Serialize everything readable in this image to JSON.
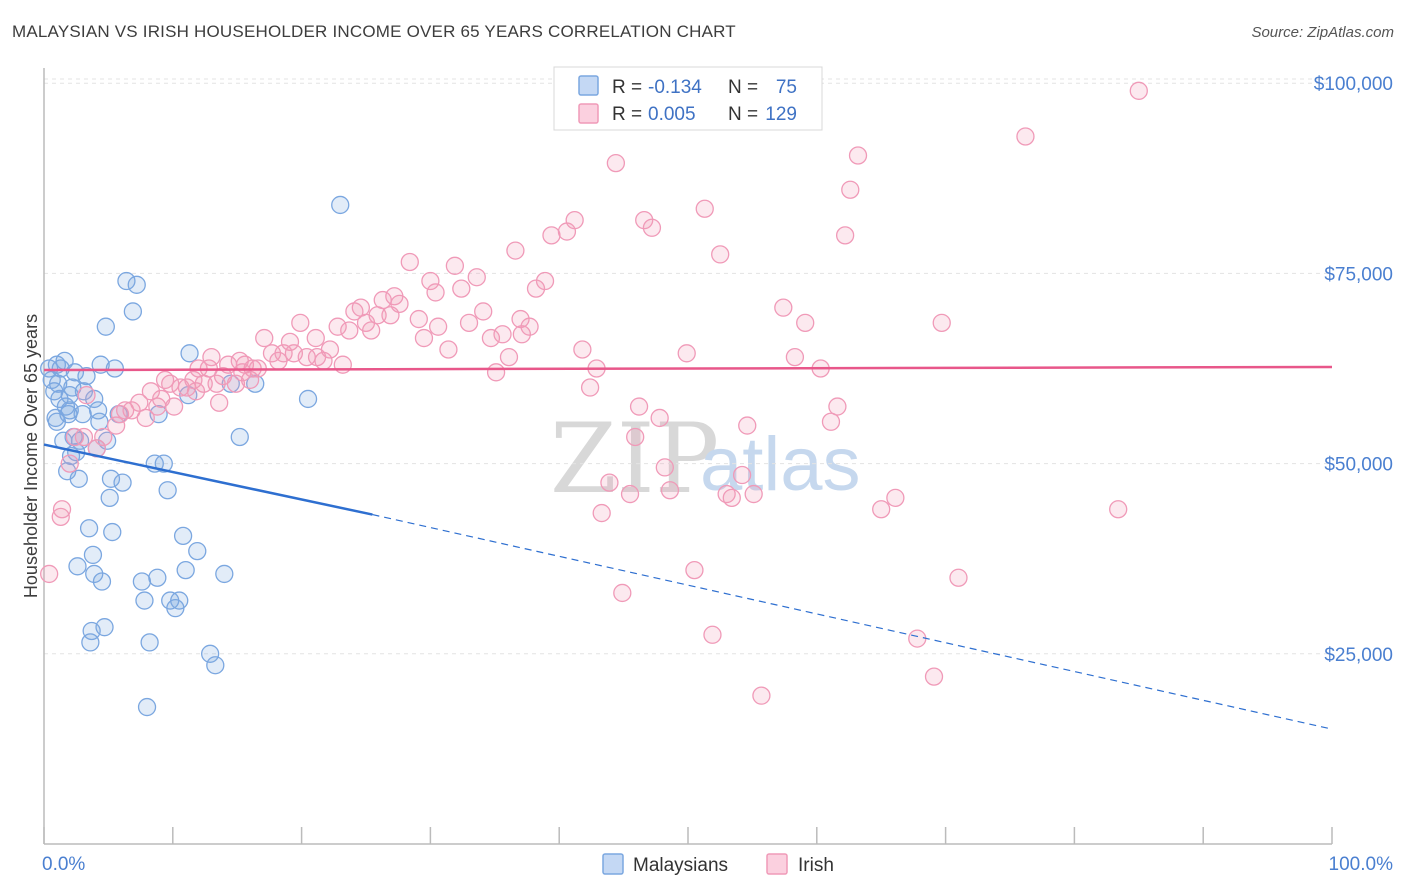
{
  "title": "MALAYSIAN VS IRISH HOUSEHOLDER INCOME OVER 65 YEARS CORRELATION CHART",
  "source": "Source: ZipAtlas.com",
  "watermark": {
    "part1": "ZIP",
    "part2": "atlas"
  },
  "legend": {
    "rows": [
      {
        "r_label": "R =",
        "r_value": "-0.134",
        "n_label": "N =",
        "n_value": "75",
        "color": "#7ba7e0"
      },
      {
        "r_label": "R =",
        "r_value": "0.005",
        "n_label": "N =",
        "n_value": "129",
        "color": "#f09ab8"
      }
    ]
  },
  "bottom_legend": [
    {
      "label": "Malaysians",
      "color": "#7ba7e0"
    },
    {
      "label": "Irish",
      "color": "#f09ab8"
    }
  ],
  "chart_data": {
    "type": "scatter",
    "xlabel": "",
    "ylabel": "Householder Income Over 65 years",
    "xlim": [
      0,
      100
    ],
    "ylim": [
      0,
      102000
    ],
    "x_tick_labels": [
      "0.0%",
      "100.0%"
    ],
    "y_ticks": [
      25000,
      50000,
      75000,
      100000
    ],
    "y_tick_labels": [
      "$25,000",
      "$50,000",
      "$75,000",
      "$100,000"
    ],
    "grid": true,
    "series": [
      {
        "name": "Malaysians",
        "color": "#7ba7e0",
        "trend": {
          "x0": 0,
          "y0": 52500,
          "x1": 25.5,
          "y1": 43300,
          "x_end": 100,
          "y_end": 15100
        },
        "points": [
          [
            0.4,
            62500
          ],
          [
            0.6,
            61000
          ],
          [
            0.8,
            59500
          ],
          [
            0.9,
            56000
          ],
          [
            1.0,
            63000
          ],
          [
            1.1,
            60500
          ],
          [
            1.2,
            58500
          ],
          [
            1.3,
            62500
          ],
          [
            1.5,
            53000
          ],
          [
            1.6,
            63500
          ],
          [
            1.7,
            57500
          ],
          [
            1.8,
            49000
          ],
          [
            1.9,
            56500
          ],
          [
            2.0,
            59000
          ],
          [
            2.1,
            51000
          ],
          [
            2.2,
            60000
          ],
          [
            2.3,
            53500
          ],
          [
            2.4,
            62000
          ],
          [
            2.5,
            51500
          ],
          [
            2.6,
            36500
          ],
          [
            2.7,
            48000
          ],
          [
            2.8,
            53000
          ],
          [
            3.0,
            56500
          ],
          [
            3.1,
            59500
          ],
          [
            3.3,
            61500
          ],
          [
            3.5,
            41500
          ],
          [
            3.6,
            26500
          ],
          [
            3.7,
            28000
          ],
          [
            3.8,
            38000
          ],
          [
            3.9,
            35500
          ],
          [
            4.1,
            52000
          ],
          [
            4.2,
            57000
          ],
          [
            4.3,
            55500
          ],
          [
            4.4,
            63000
          ],
          [
            4.5,
            34500
          ],
          [
            4.7,
            28500
          ],
          [
            4.8,
            68000
          ],
          [
            4.9,
            53000
          ],
          [
            5.1,
            45500
          ],
          [
            5.2,
            48000
          ],
          [
            5.3,
            41000
          ],
          [
            5.5,
            62500
          ],
          [
            5.8,
            56500
          ],
          [
            6.1,
            47500
          ],
          [
            6.4,
            74000
          ],
          [
            6.9,
            70000
          ],
          [
            7.2,
            73500
          ],
          [
            7.6,
            34500
          ],
          [
            7.8,
            32000
          ],
          [
            8.0,
            18000
          ],
          [
            8.2,
            26500
          ],
          [
            8.6,
            50000
          ],
          [
            8.8,
            35000
          ],
          [
            8.9,
            56500
          ],
          [
            9.3,
            50000
          ],
          [
            9.6,
            46500
          ],
          [
            9.8,
            32000
          ],
          [
            10.2,
            31000
          ],
          [
            10.5,
            32000
          ],
          [
            10.8,
            40500
          ],
          [
            11.0,
            36000
          ],
          [
            11.2,
            59000
          ],
          [
            11.3,
            64500
          ],
          [
            11.9,
            38500
          ],
          [
            12.9,
            25000
          ],
          [
            13.3,
            23500
          ],
          [
            14.0,
            35500
          ],
          [
            14.5,
            60500
          ],
          [
            15.2,
            53500
          ],
          [
            16.4,
            60500
          ],
          [
            20.5,
            58500
          ],
          [
            23.0,
            84000
          ],
          [
            1.0,
            55500
          ],
          [
            2.0,
            57000
          ],
          [
            3.9,
            58500
          ]
        ]
      },
      {
        "name": "Irish",
        "color": "#f09ab8",
        "trend": {
          "x0": 0,
          "y0": 62300,
          "x1": 100,
          "y1": 62700
        },
        "points": [
          [
            0.4,
            35500
          ],
          [
            1.3,
            43000
          ],
          [
            1.4,
            44000
          ],
          [
            2.0,
            50000
          ],
          [
            2.4,
            53500
          ],
          [
            3.1,
            53500
          ],
          [
            3.3,
            59000
          ],
          [
            4.1,
            52000
          ],
          [
            4.6,
            53500
          ],
          [
            5.6,
            55000
          ],
          [
            5.9,
            56500
          ],
          [
            6.3,
            57000
          ],
          [
            6.8,
            57000
          ],
          [
            7.4,
            58000
          ],
          [
            7.9,
            56000
          ],
          [
            8.3,
            59500
          ],
          [
            8.8,
            57500
          ],
          [
            9.1,
            58500
          ],
          [
            9.4,
            61000
          ],
          [
            9.8,
            60500
          ],
          [
            10.1,
            57500
          ],
          [
            10.6,
            60000
          ],
          [
            11.1,
            60000
          ],
          [
            11.6,
            61000
          ],
          [
            12.0,
            62500
          ],
          [
            12.4,
            60500
          ],
          [
            12.8,
            62500
          ],
          [
            13.0,
            64000
          ],
          [
            13.4,
            60500
          ],
          [
            13.9,
            61500
          ],
          [
            14.3,
            63000
          ],
          [
            14.9,
            60500
          ],
          [
            15.2,
            63500
          ],
          [
            15.6,
            63000
          ],
          [
            16.0,
            61000
          ],
          [
            16.2,
            62500
          ],
          [
            16.6,
            62500
          ],
          [
            17.1,
            66500
          ],
          [
            17.7,
            64500
          ],
          [
            18.2,
            63500
          ],
          [
            18.6,
            64500
          ],
          [
            19.1,
            66000
          ],
          [
            19.4,
            64500
          ],
          [
            19.9,
            68500
          ],
          [
            20.4,
            64000
          ],
          [
            21.1,
            66500
          ],
          [
            21.7,
            63500
          ],
          [
            22.2,
            65000
          ],
          [
            22.8,
            68000
          ],
          [
            23.2,
            63000
          ],
          [
            23.7,
            67500
          ],
          [
            24.1,
            70000
          ],
          [
            24.6,
            70500
          ],
          [
            25.0,
            68500
          ],
          [
            25.4,
            67500
          ],
          [
            25.9,
            69500
          ],
          [
            26.3,
            71500
          ],
          [
            27.2,
            72000
          ],
          [
            27.6,
            71000
          ],
          [
            28.4,
            76500
          ],
          [
            29.1,
            69000
          ],
          [
            29.5,
            66500
          ],
          [
            30.0,
            74000
          ],
          [
            30.6,
            68000
          ],
          [
            31.4,
            65000
          ],
          [
            31.9,
            76000
          ],
          [
            32.4,
            73000
          ],
          [
            33.0,
            68500
          ],
          [
            33.6,
            74500
          ],
          [
            34.1,
            70000
          ],
          [
            34.7,
            66500
          ],
          [
            35.1,
            62000
          ],
          [
            35.6,
            67000
          ],
          [
            36.1,
            64000
          ],
          [
            36.6,
            78000
          ],
          [
            37.1,
            67000
          ],
          [
            37.7,
            68000
          ],
          [
            38.2,
            73000
          ],
          [
            38.9,
            74000
          ],
          [
            39.4,
            80000
          ],
          [
            40.6,
            80500
          ],
          [
            41.2,
            82000
          ],
          [
            41.8,
            65000
          ],
          [
            42.4,
            60000
          ],
          [
            42.9,
            62500
          ],
          [
            43.3,
            43500
          ],
          [
            43.9,
            47500
          ],
          [
            44.4,
            89500
          ],
          [
            44.9,
            33000
          ],
          [
            45.5,
            46000
          ],
          [
            45.9,
            53500
          ],
          [
            46.6,
            82000
          ],
          [
            47.2,
            81000
          ],
          [
            47.8,
            56000
          ],
          [
            48.2,
            49500
          ],
          [
            48.6,
            46500
          ],
          [
            49.9,
            64500
          ],
          [
            50.5,
            36000
          ],
          [
            51.3,
            83500
          ],
          [
            51.9,
            27500
          ],
          [
            52.5,
            77500
          ],
          [
            53.0,
            46000
          ],
          [
            53.4,
            45500
          ],
          [
            54.2,
            48500
          ],
          [
            54.6,
            55000
          ],
          [
            55.1,
            46000
          ],
          [
            55.7,
            19500
          ],
          [
            57.4,
            70500
          ],
          [
            58.3,
            64000
          ],
          [
            59.1,
            68500
          ],
          [
            60.3,
            62500
          ],
          [
            61.1,
            55500
          ],
          [
            61.6,
            57500
          ],
          [
            62.2,
            80000
          ],
          [
            62.6,
            86000
          ],
          [
            63.2,
            90500
          ],
          [
            65.0,
            44000
          ],
          [
            66.1,
            45500
          ],
          [
            67.8,
            27000
          ],
          [
            69.1,
            22000
          ],
          [
            69.7,
            68500
          ],
          [
            71.0,
            35000
          ],
          [
            76.2,
            93000
          ],
          [
            83.4,
            44000
          ],
          [
            85.0,
            99000
          ],
          [
            46.2,
            57500
          ],
          [
            37.0,
            69000
          ],
          [
            26.9,
            69500
          ],
          [
            30.4,
            72500
          ],
          [
            21.2,
            64000
          ],
          [
            15.4,
            62000
          ],
          [
            13.6,
            58000
          ],
          [
            11.8,
            59500
          ]
        ]
      }
    ]
  }
}
